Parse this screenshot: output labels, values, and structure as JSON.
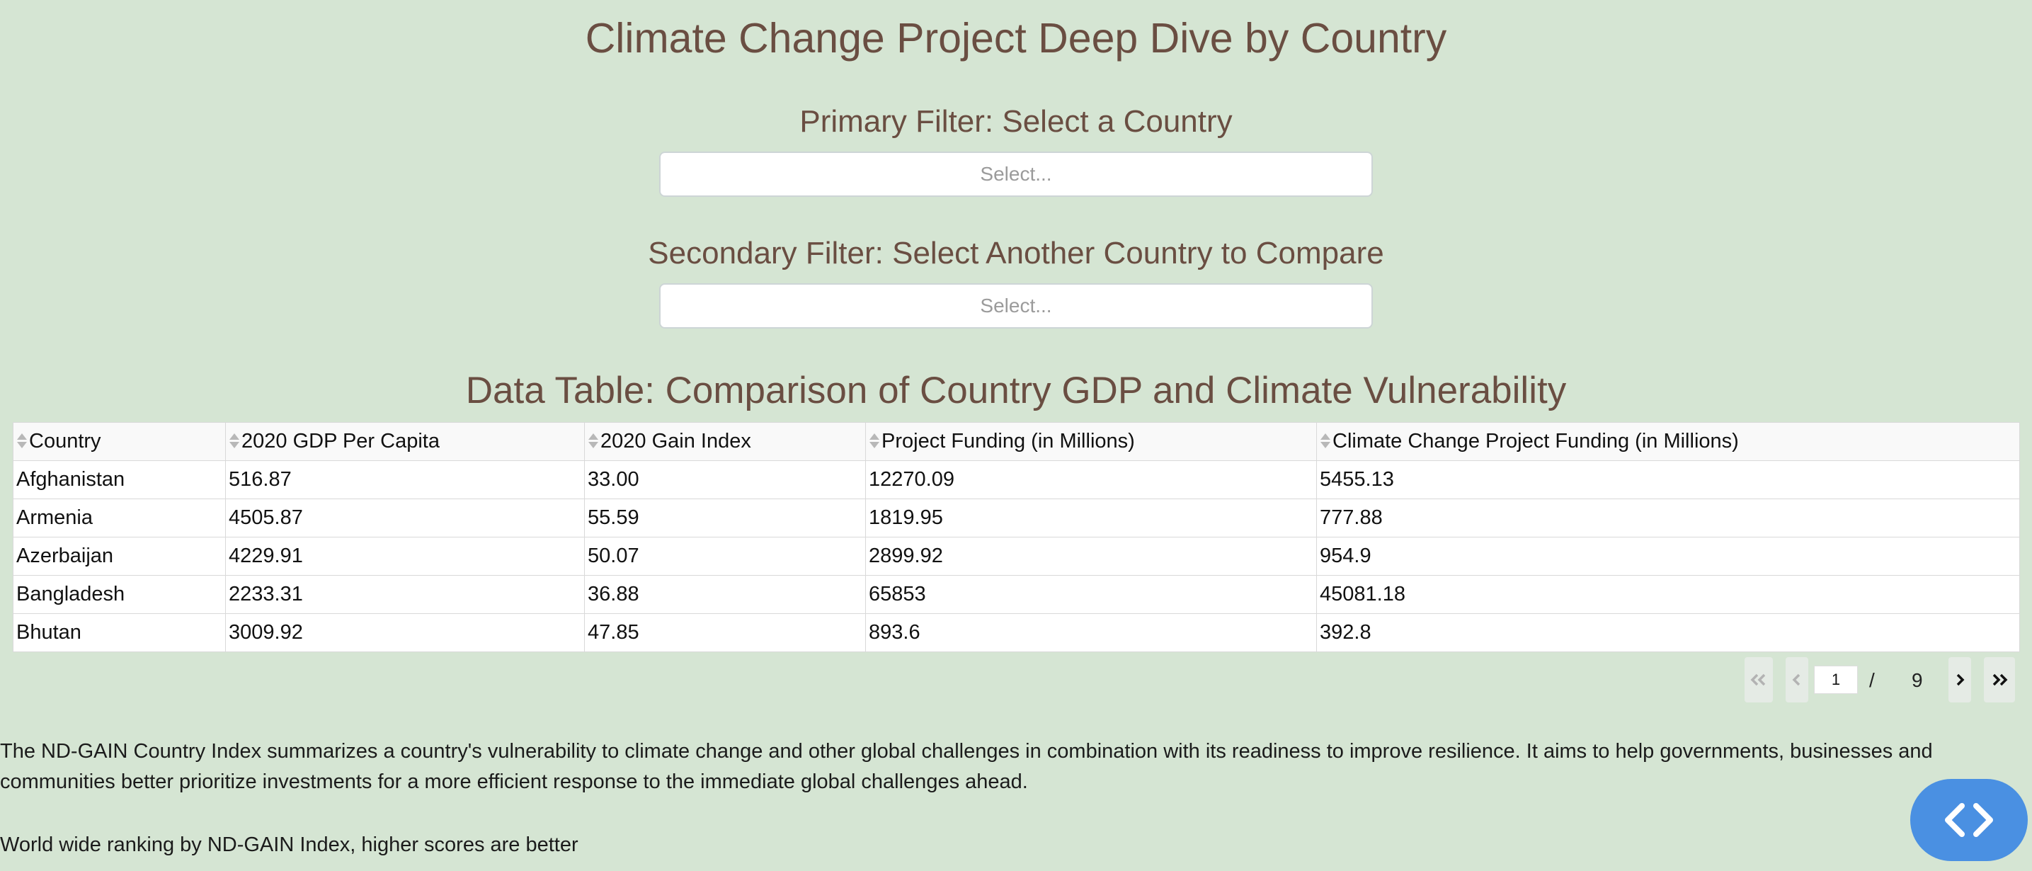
{
  "page": {
    "title": "Climate Change Project Deep Dive by Country"
  },
  "filters": {
    "primary": {
      "label": "Primary Filter: Select a Country",
      "placeholder": "Select..."
    },
    "secondary": {
      "label": "Secondary Filter: Select Another Country to Compare",
      "placeholder": "Select..."
    }
  },
  "table": {
    "title": "Data Table: Comparison of Country GDP and Climate Vulnerability",
    "columns": [
      "Country",
      "2020 GDP Per Capita",
      "2020 Gain Index",
      "Project Funding (in Millions)",
      "Climate Change Project Funding (in Millions)"
    ],
    "rows": [
      [
        "Afghanistan",
        "516.87",
        "33.00",
        "12270.09",
        "5455.13"
      ],
      [
        "Armenia",
        "4505.87",
        "55.59",
        "1819.95",
        "777.88"
      ],
      [
        "Azerbaijan",
        "4229.91",
        "50.07",
        "2899.92",
        "954.9"
      ],
      [
        "Bangladesh",
        "2233.31",
        "36.88",
        "65853",
        "45081.18"
      ],
      [
        "Bhutan",
        "3009.92",
        "47.85",
        "893.6",
        "392.8"
      ]
    ]
  },
  "pagination": {
    "current_page": "1",
    "separator": "/",
    "total_pages": "9",
    "icons": [
      "first-page-icon",
      "previous-page-icon",
      "next-page-icon",
      "last-page-icon"
    ]
  },
  "description": {
    "text": "The ND-GAIN Country Index summarizes a country's vulnerability to climate change and other global challenges in combination with its readiness to improve resilience. It aims to help governments, businesses and communities better prioritize investments for a more efficient response to the immediate global challenges ahead.",
    "ranking": "World wide ranking by ND-GAIN Index, higher scores are better"
  },
  "debug_button": {
    "icon": "code-brackets-icon"
  },
  "colors": {
    "background": "#d5e5d3",
    "heading": "#6a4e42",
    "fab": "#4a90e2"
  }
}
